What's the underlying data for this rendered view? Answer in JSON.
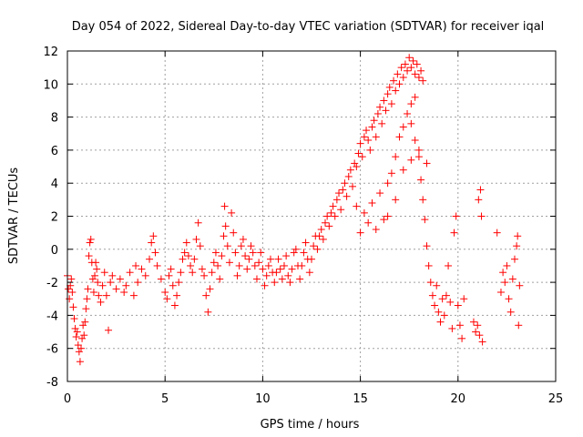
{
  "chart_data": {
    "type": "scatter",
    "title": "Day 054 of 2022, Sidereal Day-to-day VTEC variation (SDTVAR) for receiver iqal",
    "xlabel": "GPS time / hours",
    "ylabel": "SDTVAR / TECUs",
    "xlim": [
      0,
      25
    ],
    "ylim": [
      -8,
      12
    ],
    "xticks": [
      0,
      5,
      10,
      15,
      20,
      25
    ],
    "yticks": [
      -8,
      -6,
      -4,
      -2,
      0,
      2,
      4,
      6,
      8,
      10,
      12
    ],
    "xtick_labels": [
      "0",
      "5",
      "10",
      "15",
      "20",
      "25"
    ],
    "ytick_labels": [
      "-8",
      "-6",
      "-4",
      "-2",
      "0",
      "2",
      "4",
      "6",
      "8",
      "10",
      "12"
    ],
    "grid": true,
    "marker": "+",
    "color": "#ff0000",
    "series": [
      {
        "name": "SDTVAR",
        "points": [
          [
            0.0,
            -1.6
          ],
          [
            0.05,
            -2.4
          ],
          [
            0.1,
            -3.0
          ],
          [
            0.15,
            -2.2
          ],
          [
            0.2,
            -1.8
          ],
          [
            0.25,
            -2.6
          ],
          [
            0.3,
            -3.5
          ],
          [
            0.35,
            -4.2
          ],
          [
            0.4,
            -4.8
          ],
          [
            0.45,
            -5.3
          ],
          [
            0.5,
            -5.0
          ],
          [
            0.55,
            -5.8
          ],
          [
            0.6,
            -6.2
          ],
          [
            0.65,
            -6.8
          ],
          [
            0.7,
            -6.0
          ],
          [
            0.75,
            -5.4
          ],
          [
            0.8,
            -4.6
          ],
          [
            0.85,
            -5.2
          ],
          [
            0.9,
            -4.4
          ],
          [
            0.95,
            -3.6
          ],
          [
            1.0,
            -3.0
          ],
          [
            1.05,
            -2.4
          ],
          [
            1.1,
            -0.4
          ],
          [
            1.15,
            0.4
          ],
          [
            1.2,
            0.6
          ],
          [
            1.25,
            -0.8
          ],
          [
            1.3,
            -1.8
          ],
          [
            1.35,
            -2.6
          ],
          [
            1.4,
            -1.6
          ],
          [
            1.45,
            -0.8
          ],
          [
            1.5,
            -1.2
          ],
          [
            1.55,
            -2.0
          ],
          [
            1.6,
            -2.8
          ],
          [
            1.7,
            -3.2
          ],
          [
            1.8,
            -2.2
          ],
          [
            1.9,
            -1.4
          ],
          [
            2.0,
            -2.8
          ],
          [
            2.1,
            -4.9
          ],
          [
            2.2,
            -2.0
          ],
          [
            2.3,
            -1.6
          ],
          [
            2.5,
            -2.4
          ],
          [
            2.7,
            -1.8
          ],
          [
            2.9,
            -2.6
          ],
          [
            3.0,
            -2.2
          ],
          [
            3.2,
            -1.4
          ],
          [
            3.4,
            -2.8
          ],
          [
            3.5,
            -1.0
          ],
          [
            3.6,
            -2.0
          ],
          [
            3.8,
            -1.2
          ],
          [
            4.0,
            -1.6
          ],
          [
            4.2,
            -0.6
          ],
          [
            4.3,
            0.4
          ],
          [
            4.4,
            0.8
          ],
          [
            4.5,
            -0.2
          ],
          [
            4.6,
            -1.0
          ],
          [
            4.8,
            -1.8
          ],
          [
            5.0,
            -2.6
          ],
          [
            5.1,
            -3.0
          ],
          [
            5.2,
            -1.6
          ],
          [
            5.3,
            -1.2
          ],
          [
            5.4,
            -2.2
          ],
          [
            5.5,
            -3.4
          ],
          [
            5.6,
            -2.8
          ],
          [
            5.7,
            -2.0
          ],
          [
            5.8,
            -1.4
          ],
          [
            5.9,
            -0.6
          ],
          [
            6.0,
            -0.2
          ],
          [
            6.1,
            0.4
          ],
          [
            6.2,
            -0.4
          ],
          [
            6.3,
            -1.0
          ],
          [
            6.4,
            -1.4
          ],
          [
            6.5,
            -0.6
          ],
          [
            6.6,
            0.6
          ],
          [
            6.7,
            1.6
          ],
          [
            6.8,
            0.2
          ],
          [
            6.9,
            -1.2
          ],
          [
            7.0,
            -1.6
          ],
          [
            7.1,
            -2.8
          ],
          [
            7.2,
            -3.8
          ],
          [
            7.3,
            -2.4
          ],
          [
            7.4,
            -1.4
          ],
          [
            7.5,
            -0.8
          ],
          [
            7.6,
            -0.2
          ],
          [
            7.7,
            -1.0
          ],
          [
            7.8,
            -1.8
          ],
          [
            7.9,
            -0.4
          ],
          [
            8.0,
            0.8
          ],
          [
            8.05,
            2.6
          ],
          [
            8.1,
            1.4
          ],
          [
            8.2,
            0.2
          ],
          [
            8.3,
            -0.8
          ],
          [
            8.4,
            2.2
          ],
          [
            8.5,
            1.0
          ],
          [
            8.6,
            -0.2
          ],
          [
            8.7,
            -1.6
          ],
          [
            8.8,
            -1.0
          ],
          [
            8.9,
            0.2
          ],
          [
            9.0,
            0.6
          ],
          [
            9.1,
            -0.4
          ],
          [
            9.2,
            -1.2
          ],
          [
            9.3,
            -0.6
          ],
          [
            9.4,
            0.2
          ],
          [
            9.5,
            -0.2
          ],
          [
            9.6,
            -1.0
          ],
          [
            9.7,
            -1.8
          ],
          [
            9.8,
            -0.8
          ],
          [
            9.9,
            -0.2
          ],
          [
            10.0,
            -1.2
          ],
          [
            10.1,
            -2.2
          ],
          [
            10.2,
            -1.6
          ],
          [
            10.3,
            -1.0
          ],
          [
            10.4,
            -0.6
          ],
          [
            10.5,
            -1.4
          ],
          [
            10.6,
            -2.0
          ],
          [
            10.7,
            -1.4
          ],
          [
            10.8,
            -0.6
          ],
          [
            10.9,
            -1.2
          ],
          [
            11.0,
            -1.8
          ],
          [
            11.1,
            -1.0
          ],
          [
            11.2,
            -0.4
          ],
          [
            11.3,
            -1.6
          ],
          [
            11.4,
            -2.0
          ],
          [
            11.5,
            -1.2
          ],
          [
            11.6,
            -0.2
          ],
          [
            11.7,
            0.0
          ],
          [
            11.8,
            -1.0
          ],
          [
            11.9,
            -1.8
          ],
          [
            12.0,
            -1.0
          ],
          [
            12.1,
            -0.2
          ],
          [
            12.2,
            0.4
          ],
          [
            12.3,
            -0.6
          ],
          [
            12.4,
            -1.4
          ],
          [
            12.5,
            -0.6
          ],
          [
            12.6,
            0.2
          ],
          [
            12.7,
            0.8
          ],
          [
            12.8,
            0.0
          ],
          [
            12.9,
            0.8
          ],
          [
            13.0,
            1.2
          ],
          [
            13.1,
            0.6
          ],
          [
            13.2,
            1.6
          ],
          [
            13.3,
            2.0
          ],
          [
            13.4,
            1.4
          ],
          [
            13.5,
            2.2
          ],
          [
            13.6,
            2.6
          ],
          [
            13.7,
            2.0
          ],
          [
            13.8,
            3.0
          ],
          [
            13.9,
            3.4
          ],
          [
            14.0,
            2.4
          ],
          [
            14.1,
            3.6
          ],
          [
            14.2,
            4.0
          ],
          [
            14.3,
            3.2
          ],
          [
            14.4,
            4.4
          ],
          [
            14.5,
            4.8
          ],
          [
            14.6,
            3.8
          ],
          [
            14.7,
            5.2
          ],
          [
            14.8,
            5.0
          ],
          [
            14.9,
            5.8
          ],
          [
            15.0,
            6.4
          ],
          [
            15.1,
            5.6
          ],
          [
            15.2,
            6.8
          ],
          [
            15.3,
            7.2
          ],
          [
            15.4,
            6.6
          ],
          [
            15.5,
            6.0
          ],
          [
            15.6,
            7.4
          ],
          [
            15.7,
            7.8
          ],
          [
            15.8,
            6.8
          ],
          [
            15.9,
            8.2
          ],
          [
            16.0,
            8.6
          ],
          [
            16.1,
            7.6
          ],
          [
            16.2,
            9.0
          ],
          [
            16.3,
            8.4
          ],
          [
            16.4,
            9.4
          ],
          [
            16.5,
            9.8
          ],
          [
            16.6,
            8.8
          ],
          [
            16.7,
            10.2
          ],
          [
            16.8,
            9.6
          ],
          [
            16.9,
            10.6
          ],
          [
            17.0,
            10.0
          ],
          [
            17.1,
            11.0
          ],
          [
            17.2,
            10.4
          ],
          [
            17.3,
            11.2
          ],
          [
            17.4,
            10.8
          ],
          [
            17.5,
            11.6
          ],
          [
            17.6,
            11.0
          ],
          [
            17.7,
            11.4
          ],
          [
            17.8,
            10.6
          ],
          [
            17.9,
            11.2
          ],
          [
            18.0,
            10.4
          ],
          [
            18.1,
            10.8
          ],
          [
            18.2,
            10.2
          ],
          [
            14.8,
            2.6
          ],
          [
            15.2,
            2.2
          ],
          [
            15.6,
            2.8
          ],
          [
            16.0,
            3.4
          ],
          [
            16.2,
            1.8
          ],
          [
            16.4,
            4.0
          ],
          [
            16.6,
            4.6
          ],
          [
            16.8,
            5.6
          ],
          [
            17.0,
            6.8
          ],
          [
            17.2,
            7.4
          ],
          [
            17.4,
            8.2
          ],
          [
            17.6,
            8.8
          ],
          [
            17.8,
            9.2
          ],
          [
            15.0,
            1.0
          ],
          [
            15.4,
            1.6
          ],
          [
            15.8,
            1.2
          ],
          [
            16.4,
            2.0
          ],
          [
            16.8,
            3.0
          ],
          [
            17.2,
            4.8
          ],
          [
            17.6,
            5.4
          ],
          [
            18.0,
            6.0
          ],
          [
            18.4,
            5.2
          ],
          [
            17.6,
            7.6
          ],
          [
            17.8,
            6.6
          ],
          [
            18.0,
            5.6
          ],
          [
            18.1,
            4.2
          ],
          [
            18.2,
            3.0
          ],
          [
            18.3,
            1.8
          ],
          [
            18.4,
            0.2
          ],
          [
            18.5,
            -1.0
          ],
          [
            18.6,
            -2.0
          ],
          [
            18.7,
            -2.8
          ],
          [
            18.8,
            -3.4
          ],
          [
            18.9,
            -2.2
          ],
          [
            19.0,
            -3.8
          ],
          [
            19.1,
            -4.4
          ],
          [
            19.2,
            -3.0
          ],
          [
            19.3,
            -4.0
          ],
          [
            19.4,
            -2.8
          ],
          [
            19.5,
            -1.0
          ],
          [
            19.6,
            -3.2
          ],
          [
            19.7,
            -4.8
          ],
          [
            19.8,
            1.0
          ],
          [
            19.9,
            2.0
          ],
          [
            20.0,
            -3.4
          ],
          [
            20.1,
            -4.6
          ],
          [
            20.2,
            -5.4
          ],
          [
            20.3,
            -3.0
          ],
          [
            20.8,
            -4.4
          ],
          [
            20.9,
            -5.0
          ],
          [
            21.0,
            -4.6
          ],
          [
            21.05,
            3.0
          ],
          [
            21.1,
            -5.2
          ],
          [
            21.15,
            3.6
          ],
          [
            21.2,
            2.0
          ],
          [
            21.25,
            -5.6
          ],
          [
            22.0,
            1.0
          ],
          [
            22.2,
            -2.6
          ],
          [
            22.3,
            -1.4
          ],
          [
            22.4,
            -2.0
          ],
          [
            22.5,
            -1.0
          ],
          [
            22.6,
            -3.0
          ],
          [
            22.7,
            -3.8
          ],
          [
            22.8,
            -1.8
          ],
          [
            22.9,
            -0.6
          ],
          [
            23.0,
            0.2
          ],
          [
            23.05,
            0.8
          ],
          [
            23.1,
            -4.6
          ],
          [
            23.15,
            -2.2
          ]
        ]
      }
    ]
  }
}
